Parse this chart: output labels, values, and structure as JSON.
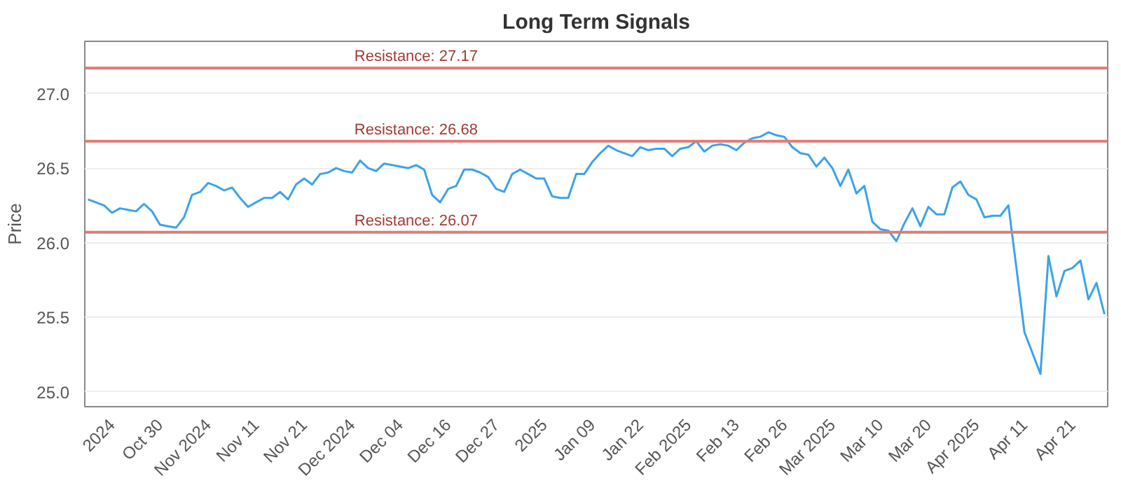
{
  "chart_data": {
    "type": "line",
    "title": "Long Term Signals",
    "ylabel": "Price",
    "categories": [
      null,
      null,
      null,
      "2024",
      null,
      null,
      null,
      null,
      null,
      "Oct 30",
      null,
      null,
      null,
      null,
      null,
      "Nov 2024",
      null,
      null,
      null,
      null,
      null,
      "Nov 11",
      null,
      null,
      null,
      null,
      null,
      "Nov 21",
      null,
      null,
      null,
      null,
      null,
      "Dec 2024",
      null,
      null,
      null,
      null,
      null,
      "Dec 04",
      null,
      null,
      null,
      null,
      null,
      "Dec 16",
      null,
      null,
      null,
      null,
      null,
      "Dec 27",
      null,
      null,
      null,
      null,
      null,
      "2025",
      null,
      null,
      null,
      null,
      null,
      "Jan 09",
      null,
      null,
      null,
      null,
      null,
      "Jan 22",
      null,
      null,
      null,
      null,
      null,
      "Feb 2025",
      null,
      null,
      null,
      null,
      null,
      "Feb 13",
      null,
      null,
      null,
      null,
      null,
      "Feb 26",
      null,
      null,
      null,
      null,
      null,
      "Mar 2025",
      null,
      null,
      null,
      null,
      null,
      "Mar 10",
      null,
      null,
      null,
      null,
      null,
      "Mar 20",
      null,
      null,
      null,
      null,
      null,
      "Apr 2025",
      null,
      null,
      null,
      null,
      null,
      "Apr 11",
      null,
      null,
      null,
      null,
      null,
      "Apr 21",
      null,
      null,
      null,
      null
    ],
    "series": [
      {
        "color": "#3ba3e8",
        "values": [
          26.29,
          26.27,
          26.25,
          26.2,
          26.23,
          26.22,
          26.21,
          26.26,
          26.21,
          26.12,
          26.11,
          26.1,
          26.17,
          26.32,
          26.34,
          26.4,
          26.38,
          26.35,
          26.37,
          26.3,
          26.24,
          26.27,
          26.3,
          26.3,
          26.34,
          26.29,
          26.39,
          26.43,
          26.39,
          26.46,
          26.47,
          26.5,
          26.48,
          26.47,
          26.55,
          26.5,
          26.48,
          26.53,
          26.52,
          26.51,
          26.5,
          26.52,
          26.49,
          26.32,
          26.27,
          26.36,
          26.38,
          26.49,
          26.49,
          26.47,
          26.44,
          26.36,
          26.34,
          26.46,
          26.49,
          26.46,
          26.43,
          26.43,
          26.31,
          26.3,
          26.3,
          26.46,
          26.46,
          26.54,
          26.6,
          26.65,
          26.62,
          26.6,
          26.58,
          26.64,
          26.62,
          26.63,
          26.63,
          26.58,
          26.63,
          26.64,
          26.68,
          26.61,
          26.65,
          26.66,
          26.65,
          26.62,
          26.67,
          26.7,
          26.71,
          26.74,
          26.72,
          26.71,
          26.64,
          26.6,
          26.59,
          26.51,
          26.57,
          26.5,
          26.38,
          26.49,
          26.33,
          26.38,
          26.14,
          26.09,
          26.08,
          26.01,
          26.13,
          26.23,
          26.11,
          26.24,
          26.19,
          26.19,
          26.37,
          26.41,
          26.32,
          26.29,
          26.17,
          26.18,
          26.18,
          26.25,
          25.83,
          25.4,
          25.26,
          25.12,
          25.91,
          25.64,
          25.81,
          25.83,
          25.88,
          25.62,
          25.73,
          25.52
        ]
      }
    ],
    "ylim": [
      24.9,
      27.35
    ],
    "yticks": [
      {
        "value": 25,
        "label": "25.0"
      },
      {
        "value": 25.5,
        "label": "25.5"
      },
      {
        "value": 26,
        "label": "26.0"
      },
      {
        "value": 26.5,
        "label": "26.5"
      },
      {
        "value": 27,
        "label": "27.0"
      }
    ],
    "grid": "y",
    "marker": "none",
    "line_style": "solid",
    "ref_lines": [
      {
        "axis": "y",
        "value": 27.17,
        "label": "Resistance: 27.17",
        "color": "#e07b74"
      },
      {
        "axis": "y",
        "value": 26.68,
        "label": "Resistance: 26.68",
        "color": "#e07b74"
      },
      {
        "axis": "y",
        "value": 26.07,
        "label": "Resistance: 26.07",
        "color": "#e07b74"
      }
    ]
  }
}
